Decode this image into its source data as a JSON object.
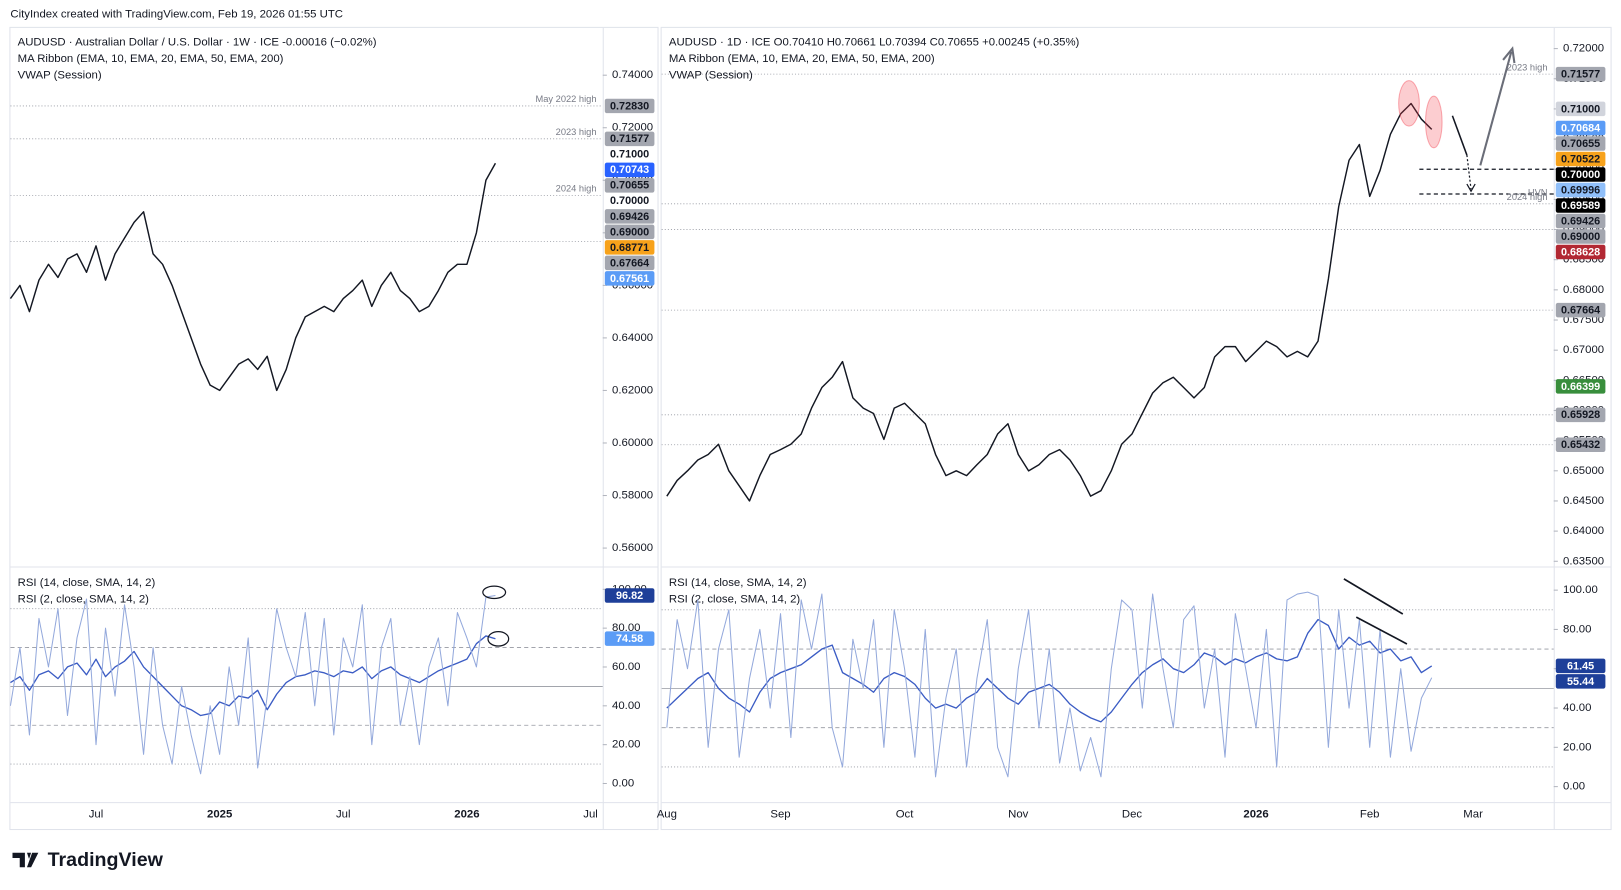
{
  "header": {
    "text": "CityIndex created with TradingView.com, Feb 19, 2026 01:55 UTC"
  },
  "footer": {
    "brand": "TradingView"
  },
  "chart_data": [
    {
      "type": "line",
      "legend_lines": [
        "AUDUSD · Australian Dollar / U.S. Dollar · 1W · ICE  -0.00016 (−0.02%)",
        "MA Ribbon (EMA, 10, EMA, 20, EMA, 50, EMA, 200)",
        "VWAP (Session)"
      ],
      "series": [
        {
          "color": "#131722",
          "values": [
            0.655,
            0.66,
            0.65,
            0.662,
            0.668,
            0.663,
            0.67,
            0.672,
            0.665,
            0.675,
            0.662,
            0.672,
            0.678,
            0.684,
            0.688,
            0.672,
            0.668,
            0.66,
            0.65,
            0.64,
            0.63,
            0.622,
            0.62,
            0.625,
            0.63,
            0.632,
            0.628,
            0.633,
            0.62,
            0.628,
            0.64,
            0.648,
            0.65,
            0.652,
            0.65,
            0.655,
            0.658,
            0.662,
            0.652,
            0.66,
            0.665,
            0.658,
            0.655,
            0.65,
            0.652,
            0.658,
            0.665,
            0.668,
            0.668,
            0.68,
            0.7,
            0.7065,
            null,
            null,
            null,
            null,
            null,
            null,
            null,
            null,
            null,
            null
          ]
        }
      ],
      "ylim": [
        0.553,
        0.758
      ],
      "yticks": [
        {
          "value": 0.56,
          "label": "0.56000"
        },
        {
          "value": 0.58,
          "label": "0.58000"
        },
        {
          "value": 0.6,
          "label": "0.60000"
        },
        {
          "value": 0.62,
          "label": "0.62000"
        },
        {
          "value": 0.64,
          "label": "0.64000"
        },
        {
          "value": 0.66,
          "label": "0.66000"
        },
        {
          "value": 0.68,
          "label": "0.68000"
        },
        {
          "value": 0.7,
          "label": "0.70000"
        },
        {
          "value": 0.72,
          "label": "0.72000"
        },
        {
          "value": 0.74,
          "label": "0.74000"
        }
      ],
      "grid": false,
      "annotations": [
        {
          "value": 0.7283,
          "label": "May 2022 high",
          "style": "dotted"
        },
        {
          "value": 0.71577,
          "label": "2023 high",
          "style": "dotted"
        },
        {
          "value": 0.69426,
          "label": "2024 high",
          "style": "dotted"
        },
        {
          "value": 0.67664,
          "style": "dotted"
        }
      ],
      "tags": [
        {
          "value": 0.7283,
          "label": "0.72830",
          "color": "#a3a6af"
        },
        {
          "value": 0.71577,
          "label": "0.71577",
          "color": "#a3a6af"
        },
        {
          "value": 0.71,
          "label": "0.71000",
          "color": "#ffffff"
        },
        {
          "value": 0.70743,
          "label": "0.70743",
          "color": "#2962ff"
        },
        {
          "value": 0.70655,
          "label": "0.70655",
          "color": "#a3a6af"
        },
        {
          "value": 0.7,
          "label": "0.70000",
          "color": "#ffffff"
        },
        {
          "value": 0.69426,
          "label": "0.69426",
          "color": "#a3a6af"
        },
        {
          "value": 0.69,
          "label": "0.69000",
          "color": "#a3a6af"
        },
        {
          "value": 0.68771,
          "label": "0.68771",
          "color": "#f7a21b"
        },
        {
          "value": 0.67664,
          "label": "0.67664",
          "color": "#a3a6af"
        },
        {
          "value": 0.67561,
          "label": "0.67561",
          "color": "#5b9cf6"
        }
      ]
    },
    {
      "type": "line",
      "legend_lines": [
        "RSI (14, close, SMA, 14, 2)",
        "RSI (2, close, SMA, 14, 2)"
      ],
      "categories": [
        null,
        null,
        null,
        null,
        null,
        null,
        null,
        null,
        null,
        "Jul",
        null,
        null,
        null,
        null,
        null,
        null,
        null,
        null,
        null,
        null,
        null,
        null,
        "2025",
        null,
        null,
        null,
        null,
        null,
        null,
        null,
        null,
        null,
        null,
        null,
        null,
        "Jul",
        null,
        null,
        null,
        null,
        null,
        null,
        null,
        null,
        null,
        null,
        null,
        null,
        "2026",
        null,
        null,
        null,
        null,
        null,
        null,
        null,
        null,
        null,
        null,
        null,
        null,
        "Jul"
      ],
      "series": [
        {
          "color": "#3b5cc4",
          "values": [
            52,
            55,
            48,
            56,
            58,
            54,
            60,
            62,
            56,
            64,
            55,
            60,
            63,
            68,
            60,
            55,
            50,
            45,
            40,
            38,
            35,
            36,
            42,
            40,
            45,
            44,
            48,
            38,
            46,
            52,
            55,
            56,
            58,
            57,
            55,
            58,
            57,
            60,
            54,
            58,
            60,
            56,
            54,
            52,
            55,
            58,
            60,
            62,
            64,
            72,
            76,
            74.58,
            null,
            null,
            null,
            null,
            null,
            null,
            null,
            null,
            null,
            null
          ]
        },
        {
          "color": "#94a9dc",
          "values": [
            40,
            70,
            25,
            85,
            60,
            90,
            35,
            75,
            95,
            20,
            80,
            45,
            92,
            60,
            15,
            70,
            30,
            10,
            50,
            25,
            5,
            40,
            15,
            60,
            30,
            75,
            8,
            45,
            90,
            70,
            55,
            88,
            40,
            85,
            25,
            75,
            60,
            92,
            20,
            70,
            85,
            30,
            55,
            20,
            60,
            75,
            40,
            88,
            75,
            60,
            96,
            96.82,
            null,
            null,
            null,
            null,
            null,
            null,
            null,
            null,
            null,
            null
          ]
        }
      ],
      "ylim": [
        -9.6,
        110.7
      ],
      "yticks": [
        {
          "value": 0,
          "label": "0.00"
        },
        {
          "value": 20,
          "label": "20.00"
        },
        {
          "value": 40,
          "label": "40.00"
        },
        {
          "value": 60,
          "label": "60.00"
        },
        {
          "value": 80,
          "label": "80.00"
        },
        {
          "value": 100,
          "label": "100.00"
        }
      ],
      "levels": [
        {
          "value": 90,
          "style": "dotted"
        },
        {
          "value": 70,
          "style": "dashed"
        },
        {
          "value": 50,
          "style": "solid"
        },
        {
          "value": 30,
          "style": "dashed"
        },
        {
          "value": 10,
          "style": "dotted"
        }
      ],
      "tags": [
        {
          "value": 96.82,
          "color": "#1e3f99"
        },
        {
          "value": 74.58,
          "color": "#5b9cf6"
        }
      ]
    },
    {
      "type": "line",
      "legend_lines": [
        "AUDUSD · 1D · ICE  O0.70410  H0.70661  L0.70394  C0.70655  +0.00245 (+0.35%)",
        "MA Ribbon (EMA, 10, EMA, 20, EMA, 50, EMA, 200)",
        "VWAP (Session)"
      ],
      "series": [
        {
          "color": "#131722",
          "values": [
            0.6458,
            0.6484,
            0.65,
            0.6518,
            0.6527,
            0.6544,
            0.65,
            0.6475,
            0.645,
            0.6492,
            0.6527,
            0.6535,
            0.6544,
            0.6561,
            0.6604,
            0.6638,
            0.6655,
            0.6681,
            0.6621,
            0.6604,
            0.6595,
            0.6552,
            0.6604,
            0.6612,
            0.6595,
            0.6578,
            0.6527,
            0.6492,
            0.65,
            0.6492,
            0.651,
            0.6527,
            0.6561,
            0.6578,
            0.6527,
            0.65,
            0.651,
            0.6527,
            0.6535,
            0.6518,
            0.6492,
            0.6458,
            0.6467,
            0.65,
            0.6544,
            0.6561,
            0.6595,
            0.6629,
            0.6646,
            0.6655,
            0.6638,
            0.6621,
            0.6638,
            0.6689,
            0.6706,
            0.6706,
            0.6681,
            0.6698,
            0.6715,
            0.6706,
            0.6689,
            0.6698,
            0.6689,
            0.6715,
            0.6818,
            0.6938,
            0.7015,
            0.7041,
            0.6955,
            0.6998,
            0.7058,
            0.7092,
            0.7109,
            0.7083,
            0.7066,
            null,
            null,
            null,
            null
          ]
        }
      ],
      "ylim": [
        0.63414,
        0.72343
      ],
      "yticks": [
        {
          "value": 0.635,
          "label": "0.63500"
        },
        {
          "value": 0.64,
          "label": "0.64000"
        },
        {
          "value": 0.645,
          "label": "0.64500"
        },
        {
          "value": 0.65,
          "label": "0.65000"
        },
        {
          "value": 0.655,
          "label": "0.65500"
        },
        {
          "value": 0.66,
          "label": "0.66000"
        },
        {
          "value": 0.665,
          "label": "0.66500"
        },
        {
          "value": 0.67,
          "label": "0.67000"
        },
        {
          "value": 0.675,
          "label": "0.67500"
        },
        {
          "value": 0.68,
          "label": "0.68000"
        },
        {
          "value": 0.685,
          "label": "0.68500"
        },
        {
          "value": 0.69,
          "label": "0.69000"
        },
        {
          "value": 0.695,
          "label": "0.69500"
        },
        {
          "value": 0.7,
          "label": "0.70000"
        },
        {
          "value": 0.705,
          "label": "0.70500"
        },
        {
          "value": 0.71,
          "label": "0.71000"
        },
        {
          "value": 0.715,
          "label": "0.71500"
        },
        {
          "value": 0.72,
          "label": "0.72000"
        }
      ],
      "grid": false,
      "annotations": [
        {
          "value": 0.71577,
          "label": "2023 high",
          "style": "dotted"
        },
        {
          "value": 0.7,
          "style": "dashed"
        },
        {
          "value": 0.69589,
          "label": "HVN",
          "style": "dashed"
        },
        {
          "value": 0.69426,
          "label": "2024 high",
          "style": "dotted"
        },
        {
          "value": 0.69,
          "style": "dotted"
        },
        {
          "value": 0.67664,
          "style": "dotted"
        },
        {
          "value": 0.65928,
          "style": "dotted"
        },
        {
          "value": 0.65432,
          "style": "dotted"
        }
      ],
      "tags": [
        {
          "value": 0.71577,
          "label": "0.71577",
          "color": "#a3a6af"
        },
        {
          "value": 0.71,
          "label": "0.71000",
          "color": "#d1d4dc"
        },
        {
          "value": 0.70684,
          "label": "0.70684",
          "color": "#5b9cf6"
        },
        {
          "value": 0.70655,
          "label": "0.70655",
          "color": "#a3a6af"
        },
        {
          "value": 0.70522,
          "label": "0.70522",
          "color": "#f7a21b"
        },
        {
          "value": 0.7,
          "label": "0.70000",
          "color": "#000000"
        },
        {
          "value": 0.69996,
          "label": "0.69996",
          "color": "#90bff9"
        },
        {
          "value": 0.69589,
          "label": "0.69589",
          "color": "#000000"
        },
        {
          "value": 0.69426,
          "label": "0.69426",
          "color": "#a3a6af"
        },
        {
          "value": 0.69,
          "label": "0.69000",
          "color": "#a3a6af"
        },
        {
          "value": 0.68628,
          "label": "0.68628",
          "color": "#b22833"
        },
        {
          "value": 0.67664,
          "label": "0.67664",
          "color": "#a3a6af"
        },
        {
          "value": 0.66399,
          "label": "0.66399",
          "color": "#388e3c"
        },
        {
          "value": 0.65928,
          "label": "0.65928",
          "color": "#a3a6af"
        },
        {
          "value": 0.65432,
          "label": "0.65432",
          "color": "#a3a6af"
        }
      ]
    },
    {
      "type": "line",
      "legend_lines": [
        "RSI (14, close, SMA, 14, 2)",
        "RSI (2, close, SMA, 14, 2)"
      ],
      "categories": [
        "Aug",
        null,
        null,
        null,
        null,
        null,
        null,
        null,
        null,
        null,
        null,
        "Sep",
        null,
        null,
        null,
        null,
        null,
        null,
        null,
        null,
        null,
        null,
        null,
        "Oct",
        null,
        null,
        null,
        null,
        null,
        null,
        null,
        null,
        null,
        null,
        "Nov",
        null,
        null,
        null,
        null,
        null,
        null,
        null,
        null,
        null,
        null,
        "Dec",
        null,
        null,
        null,
        null,
        null,
        null,
        null,
        null,
        null,
        null,
        null,
        "2026",
        null,
        null,
        null,
        null,
        null,
        null,
        null,
        null,
        null,
        null,
        "Feb",
        null,
        null,
        null,
        null,
        null,
        null,
        null,
        null,
        null,
        "Mar"
      ],
      "series": [
        {
          "color": "#3b5cc4",
          "values": [
            40,
            45,
            50,
            55,
            58,
            50,
            45,
            42,
            38,
            48,
            55,
            58,
            60,
            62,
            66,
            70,
            72,
            58,
            55,
            52,
            48,
            55,
            58,
            56,
            52,
            45,
            40,
            42,
            40,
            45,
            48,
            55,
            50,
            45,
            42,
            48,
            50,
            52,
            48,
            42,
            38,
            35,
            33,
            38,
            45,
            52,
            58,
            62,
            65,
            60,
            58,
            62,
            68,
            66,
            62,
            65,
            63,
            66,
            68,
            65,
            64,
            66,
            78,
            85,
            82,
            70,
            76,
            72,
            74,
            68,
            70,
            64,
            66,
            58,
            61.45,
            null,
            null,
            null,
            null
          ]
        },
        {
          "color": "#94a9dc",
          "values": [
            30,
            85,
            60,
            95,
            20,
            70,
            90,
            15,
            55,
            80,
            40,
            88,
            25,
            95,
            70,
            98,
            30,
            10,
            75,
            50,
            85,
            20,
            90,
            60,
            15,
            80,
            5,
            45,
            70,
            10,
            55,
            85,
            20,
            5,
            60,
            90,
            30,
            70,
            12,
            40,
            8,
            25,
            5,
            60,
            95,
            90,
            40,
            98,
            60,
            30,
            85,
            92,
            40,
            70,
            15,
            88,
            60,
            30,
            80,
            10,
            95,
            98,
            99,
            97,
            20,
            90,
            40,
            85,
            20,
            80,
            15,
            60,
            18,
            45,
            55.44,
            null,
            null,
            null,
            null
          ]
        }
      ],
      "ylim": [
        -7.9,
        111
      ],
      "yticks": [
        {
          "value": 0,
          "label": "0.00"
        },
        {
          "value": 20,
          "label": "20.00"
        },
        {
          "value": 40,
          "label": "40.00"
        },
        {
          "value": 60,
          "label": "60.00"
        },
        {
          "value": 80,
          "label": "80.00"
        },
        {
          "value": 100,
          "label": "100.00"
        }
      ],
      "levels": [
        {
          "value": 90,
          "style": "dotted"
        },
        {
          "value": 70,
          "style": "dashed"
        },
        {
          "value": 50,
          "style": "solid"
        },
        {
          "value": 30,
          "style": "dashed"
        },
        {
          "value": 10,
          "style": "dotted"
        }
      ],
      "tags": [
        {
          "value": 61.45,
          "color": "#1e3f99"
        },
        {
          "value": 55.44,
          "color": "#1e3f99"
        }
      ]
    }
  ]
}
